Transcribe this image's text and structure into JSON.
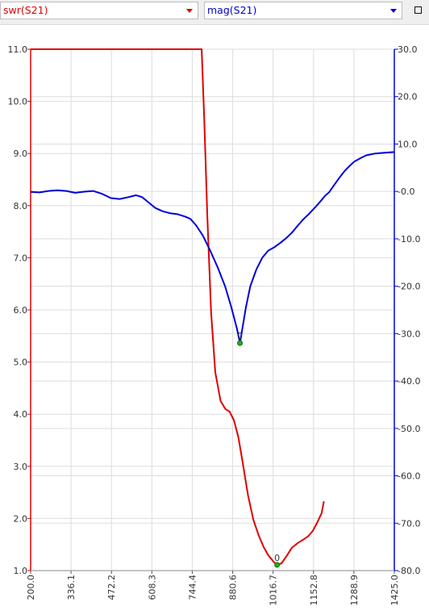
{
  "toolbar": {
    "left_select": "swr(S21)",
    "right_select": "mag(S21)"
  },
  "colors": {
    "swr": "#e00000",
    "mag": "#0000dd",
    "marker": "#22aa22",
    "grid": "#dddddd"
  },
  "chart_data": {
    "type": "line",
    "x_ticks": [
      "200.0",
      "336.1",
      "472.2",
      "608.3",
      "744.4",
      "880.6",
      "1016.7",
      "1152.8",
      "1288.9",
      "1425.0"
    ],
    "xlim": [
      200.0,
      1425.0
    ],
    "left_axis": {
      "ylim": [
        1.0,
        11.0
      ],
      "ticks": [
        "1.0",
        "2.0",
        "3.0",
        "4.0",
        "5.0",
        "6.0",
        "7.0",
        "8.0",
        "9.0",
        "10.0",
        "11.0"
      ]
    },
    "right_axis": {
      "ylim": [
        -80.0,
        30.0
      ],
      "ticks": [
        "-80.0",
        "-70.0",
        "-60.0",
        "-50.0",
        "-40.0",
        "-30.0",
        "-20.0",
        "-10.0",
        "-0.0",
        "10.0",
        "20.0",
        "30.0"
      ]
    },
    "grid": true,
    "series": [
      {
        "name": "swr(S21)",
        "axis": "left",
        "points": [
          [
            200,
            11.0
          ],
          [
            776,
            11.0
          ],
          [
            785,
            9.6
          ],
          [
            795,
            7.8
          ],
          [
            808,
            5.95
          ],
          [
            822,
            4.8
          ],
          [
            840,
            4.25
          ],
          [
            856,
            4.1
          ],
          [
            870,
            4.05
          ],
          [
            885,
            3.88
          ],
          [
            900,
            3.55
          ],
          [
            915,
            3.05
          ],
          [
            932,
            2.45
          ],
          [
            950,
            1.98
          ],
          [
            968,
            1.68
          ],
          [
            985,
            1.45
          ],
          [
            1000,
            1.3
          ],
          [
            1018,
            1.17
          ],
          [
            1030,
            1.11
          ],
          [
            1045,
            1.14
          ],
          [
            1062,
            1.28
          ],
          [
            1080,
            1.44
          ],
          [
            1100,
            1.53
          ],
          [
            1120,
            1.6
          ],
          [
            1135,
            1.66
          ],
          [
            1150,
            1.76
          ],
          [
            1165,
            1.92
          ],
          [
            1180,
            2.1
          ],
          [
            1188,
            2.33
          ]
        ]
      },
      {
        "name": "mag(S21)",
        "axis": "right",
        "points": [
          [
            200,
            -0.1
          ],
          [
            230,
            -0.2
          ],
          [
            260,
            0.1
          ],
          [
            290,
            0.25
          ],
          [
            320,
            0.1
          ],
          [
            350,
            -0.3
          ],
          [
            380,
            -0.05
          ],
          [
            410,
            0.1
          ],
          [
            440,
            -0.5
          ],
          [
            470,
            -1.4
          ],
          [
            500,
            -1.6
          ],
          [
            530,
            -1.2
          ],
          [
            555,
            -0.8
          ],
          [
            575,
            -1.2
          ],
          [
            595,
            -2.2
          ],
          [
            620,
            -3.5
          ],
          [
            645,
            -4.2
          ],
          [
            670,
            -4.6
          ],
          [
            695,
            -4.8
          ],
          [
            720,
            -5.3
          ],
          [
            738,
            -5.8
          ],
          [
            758,
            -7.2
          ],
          [
            780,
            -9.3
          ],
          [
            805,
            -12.5
          ],
          [
            830,
            -16.0
          ],
          [
            855,
            -20.0
          ],
          [
            875,
            -24.2
          ],
          [
            895,
            -29.0
          ],
          [
            905,
            -32.0
          ],
          [
            913,
            -29.0
          ],
          [
            925,
            -24.5
          ],
          [
            940,
            -20.0
          ],
          [
            960,
            -16.5
          ],
          [
            980,
            -14.0
          ],
          [
            1000,
            -12.5
          ],
          [
            1020,
            -11.8
          ],
          [
            1040,
            -10.9
          ],
          [
            1060,
            -9.9
          ],
          [
            1080,
            -8.7
          ],
          [
            1100,
            -7.2
          ],
          [
            1118,
            -5.9
          ],
          [
            1135,
            -4.9
          ],
          [
            1150,
            -3.9
          ],
          [
            1165,
            -2.9
          ],
          [
            1180,
            -1.8
          ],
          [
            1192,
            -0.9
          ],
          [
            1205,
            -0.2
          ],
          [
            1215,
            0.7
          ],
          [
            1225,
            1.6
          ],
          [
            1240,
            2.9
          ],
          [
            1255,
            4.1
          ],
          [
            1270,
            5.1
          ],
          [
            1290,
            6.3
          ],
          [
            1310,
            7.0
          ],
          [
            1330,
            7.6
          ],
          [
            1360,
            8.0
          ],
          [
            1400,
            8.2
          ],
          [
            1425,
            8.3
          ]
        ]
      }
    ],
    "markers": [
      {
        "series": "swr(S21)",
        "label": "0",
        "x": 1030,
        "y": 1.11
      },
      {
        "series": "mag(S21)",
        "label": "0",
        "x": 905,
        "y": -32.0
      }
    ]
  }
}
